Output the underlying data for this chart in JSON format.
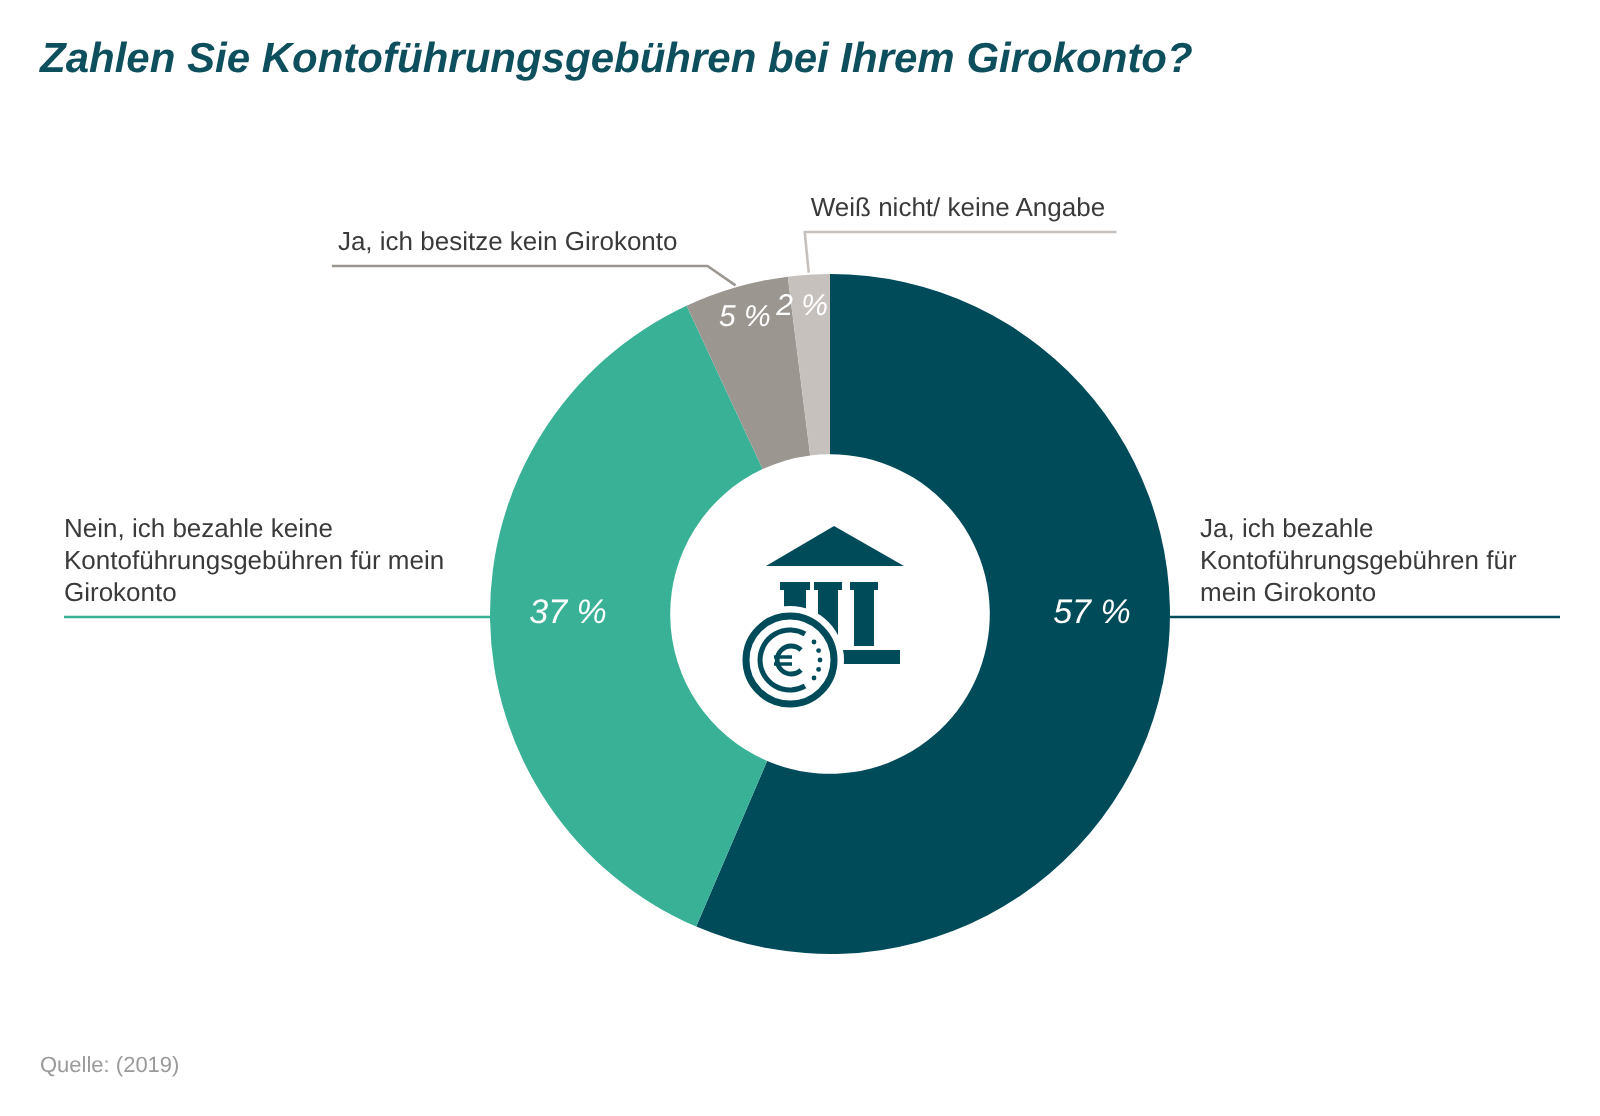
{
  "chart_data": {
    "type": "donut",
    "title": "Zahlen Sie Kontoführungsgebühren bei Ihrem Girokonto?",
    "categories": [
      "Ja, ich bezahle Kontoführungsgebühren für mein Girokonto",
      "Nein, ich bezahle keine Kontoführungsgebühren für mein Girokonto",
      "Ja, ich besitze kein Girokonto",
      "Weiß nicht/ keine Angabe"
    ],
    "values": [
      57,
      37,
      5,
      2
    ],
    "colors": [
      "#004b5a",
      "#38b197",
      "#9b9690",
      "#c6c1bd"
    ],
    "value_labels": [
      "57 %",
      "37 %",
      "5 %",
      "2 %"
    ],
    "annotations": [
      "Quelle: (2019)"
    ]
  }
}
